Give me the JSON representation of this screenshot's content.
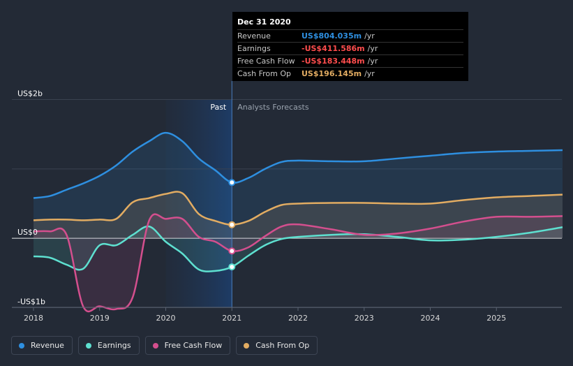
{
  "chart_data": {
    "type": "area",
    "y_tick_labels": [
      "US$2b",
      "US$0",
      "-US$1b"
    ],
    "ylim": [
      -1,
      2
    ],
    "xlim": [
      2018,
      2026
    ],
    "x_ticks": [
      2018,
      2019,
      2020,
      2021,
      2022,
      2023,
      2024,
      2025
    ],
    "past_label": "Past",
    "forecast_label": "Analysts Forecasts",
    "divider_x": 2021.0,
    "series": [
      {
        "name": "Revenue",
        "color": "#2e8fe0",
        "points": [
          [
            2018.0,
            0.58
          ],
          [
            2018.25,
            0.61
          ],
          [
            2018.5,
            0.7
          ],
          [
            2018.75,
            0.79
          ],
          [
            2019.0,
            0.9
          ],
          [
            2019.25,
            1.05
          ],
          [
            2019.5,
            1.25
          ],
          [
            2019.75,
            1.4
          ],
          [
            2020.0,
            1.52
          ],
          [
            2020.25,
            1.4
          ],
          [
            2020.5,
            1.15
          ],
          [
            2020.75,
            0.98
          ],
          [
            2021.0,
            0.804
          ],
          [
            2021.25,
            0.87
          ],
          [
            2021.5,
            1.0
          ],
          [
            2021.75,
            1.1
          ],
          [
            2022.0,
            1.12
          ],
          [
            2022.5,
            1.11
          ],
          [
            2023.0,
            1.11
          ],
          [
            2023.5,
            1.15
          ],
          [
            2024.0,
            1.19
          ],
          [
            2024.5,
            1.23
          ],
          [
            2025.0,
            1.25
          ],
          [
            2025.5,
            1.26
          ],
          [
            2026.0,
            1.27
          ]
        ]
      },
      {
        "name": "Earnings",
        "color": "#5ee0d0",
        "points": [
          [
            2018.0,
            -0.26
          ],
          [
            2018.25,
            -0.28
          ],
          [
            2018.5,
            -0.38
          ],
          [
            2018.75,
            -0.44
          ],
          [
            2019.0,
            -0.1
          ],
          [
            2019.25,
            -0.1
          ],
          [
            2019.5,
            0.05
          ],
          [
            2019.75,
            0.17
          ],
          [
            2020.0,
            -0.05
          ],
          [
            2020.25,
            -0.22
          ],
          [
            2020.5,
            -0.45
          ],
          [
            2020.75,
            -0.47
          ],
          [
            2021.0,
            -0.412
          ],
          [
            2021.25,
            -0.25
          ],
          [
            2021.5,
            -0.1
          ],
          [
            2021.75,
            -0.01
          ],
          [
            2022.0,
            0.02
          ],
          [
            2022.5,
            0.05
          ],
          [
            2023.0,
            0.06
          ],
          [
            2023.5,
            0.02
          ],
          [
            2024.0,
            -0.03
          ],
          [
            2024.5,
            -0.02
          ],
          [
            2025.0,
            0.02
          ],
          [
            2025.5,
            0.08
          ],
          [
            2026.0,
            0.16
          ]
        ]
      },
      {
        "name": "Free Cash Flow",
        "color": "#d44f8e",
        "points": [
          [
            2018.0,
            0.1
          ],
          [
            2018.25,
            0.1
          ],
          [
            2018.5,
            0.05
          ],
          [
            2018.75,
            -0.98
          ],
          [
            2019.0,
            -0.98
          ],
          [
            2019.25,
            -1.02
          ],
          [
            2019.5,
            -0.85
          ],
          [
            2019.75,
            0.26
          ],
          [
            2020.0,
            0.28
          ],
          [
            2020.25,
            0.28
          ],
          [
            2020.5,
            0.02
          ],
          [
            2020.75,
            -0.05
          ],
          [
            2021.0,
            -0.183
          ],
          [
            2021.25,
            -0.13
          ],
          [
            2021.5,
            0.03
          ],
          [
            2021.75,
            0.17
          ],
          [
            2022.0,
            0.2
          ],
          [
            2022.5,
            0.13
          ],
          [
            2023.0,
            0.05
          ],
          [
            2023.5,
            0.07
          ],
          [
            2024.0,
            0.14
          ],
          [
            2024.5,
            0.24
          ],
          [
            2025.0,
            0.31
          ],
          [
            2025.5,
            0.31
          ],
          [
            2026.0,
            0.32
          ]
        ]
      },
      {
        "name": "Cash From Op",
        "color": "#e2ac62",
        "points": [
          [
            2018.0,
            0.26
          ],
          [
            2018.25,
            0.27
          ],
          [
            2018.5,
            0.27
          ],
          [
            2018.75,
            0.26
          ],
          [
            2019.0,
            0.27
          ],
          [
            2019.25,
            0.28
          ],
          [
            2019.5,
            0.52
          ],
          [
            2019.75,
            0.58
          ],
          [
            2020.0,
            0.64
          ],
          [
            2020.25,
            0.65
          ],
          [
            2020.5,
            0.35
          ],
          [
            2020.75,
            0.25
          ],
          [
            2021.0,
            0.196
          ],
          [
            2021.25,
            0.25
          ],
          [
            2021.5,
            0.38
          ],
          [
            2021.75,
            0.48
          ],
          [
            2022.0,
            0.5
          ],
          [
            2022.5,
            0.51
          ],
          [
            2023.0,
            0.51
          ],
          [
            2023.5,
            0.5
          ],
          [
            2024.0,
            0.5
          ],
          [
            2024.5,
            0.55
          ],
          [
            2025.0,
            0.59
          ],
          [
            2025.5,
            0.61
          ],
          [
            2026.0,
            0.63
          ]
        ]
      }
    ]
  },
  "tooltip": {
    "date": "Dec 31 2020",
    "rows": [
      {
        "label": "Revenue",
        "value": "US$804.035m",
        "unit": "/yr",
        "color": "#2e8fe0"
      },
      {
        "label": "Earnings",
        "value": "-US$411.586m",
        "unit": "/yr",
        "color": "#ff4d4d"
      },
      {
        "label": "Free Cash Flow",
        "value": "-US$183.448m",
        "unit": "/yr",
        "color": "#ff4d4d"
      },
      {
        "label": "Cash From Op",
        "value": "US$196.145m",
        "unit": "/yr",
        "color": "#e2ac62"
      }
    ]
  },
  "legend": [
    {
      "label": "Revenue",
      "color": "#2e8fe0"
    },
    {
      "label": "Earnings",
      "color": "#5ee0d0"
    },
    {
      "label": "Free Cash Flow",
      "color": "#d44f8e"
    },
    {
      "label": "Cash From Op",
      "color": "#e2ac62"
    }
  ]
}
